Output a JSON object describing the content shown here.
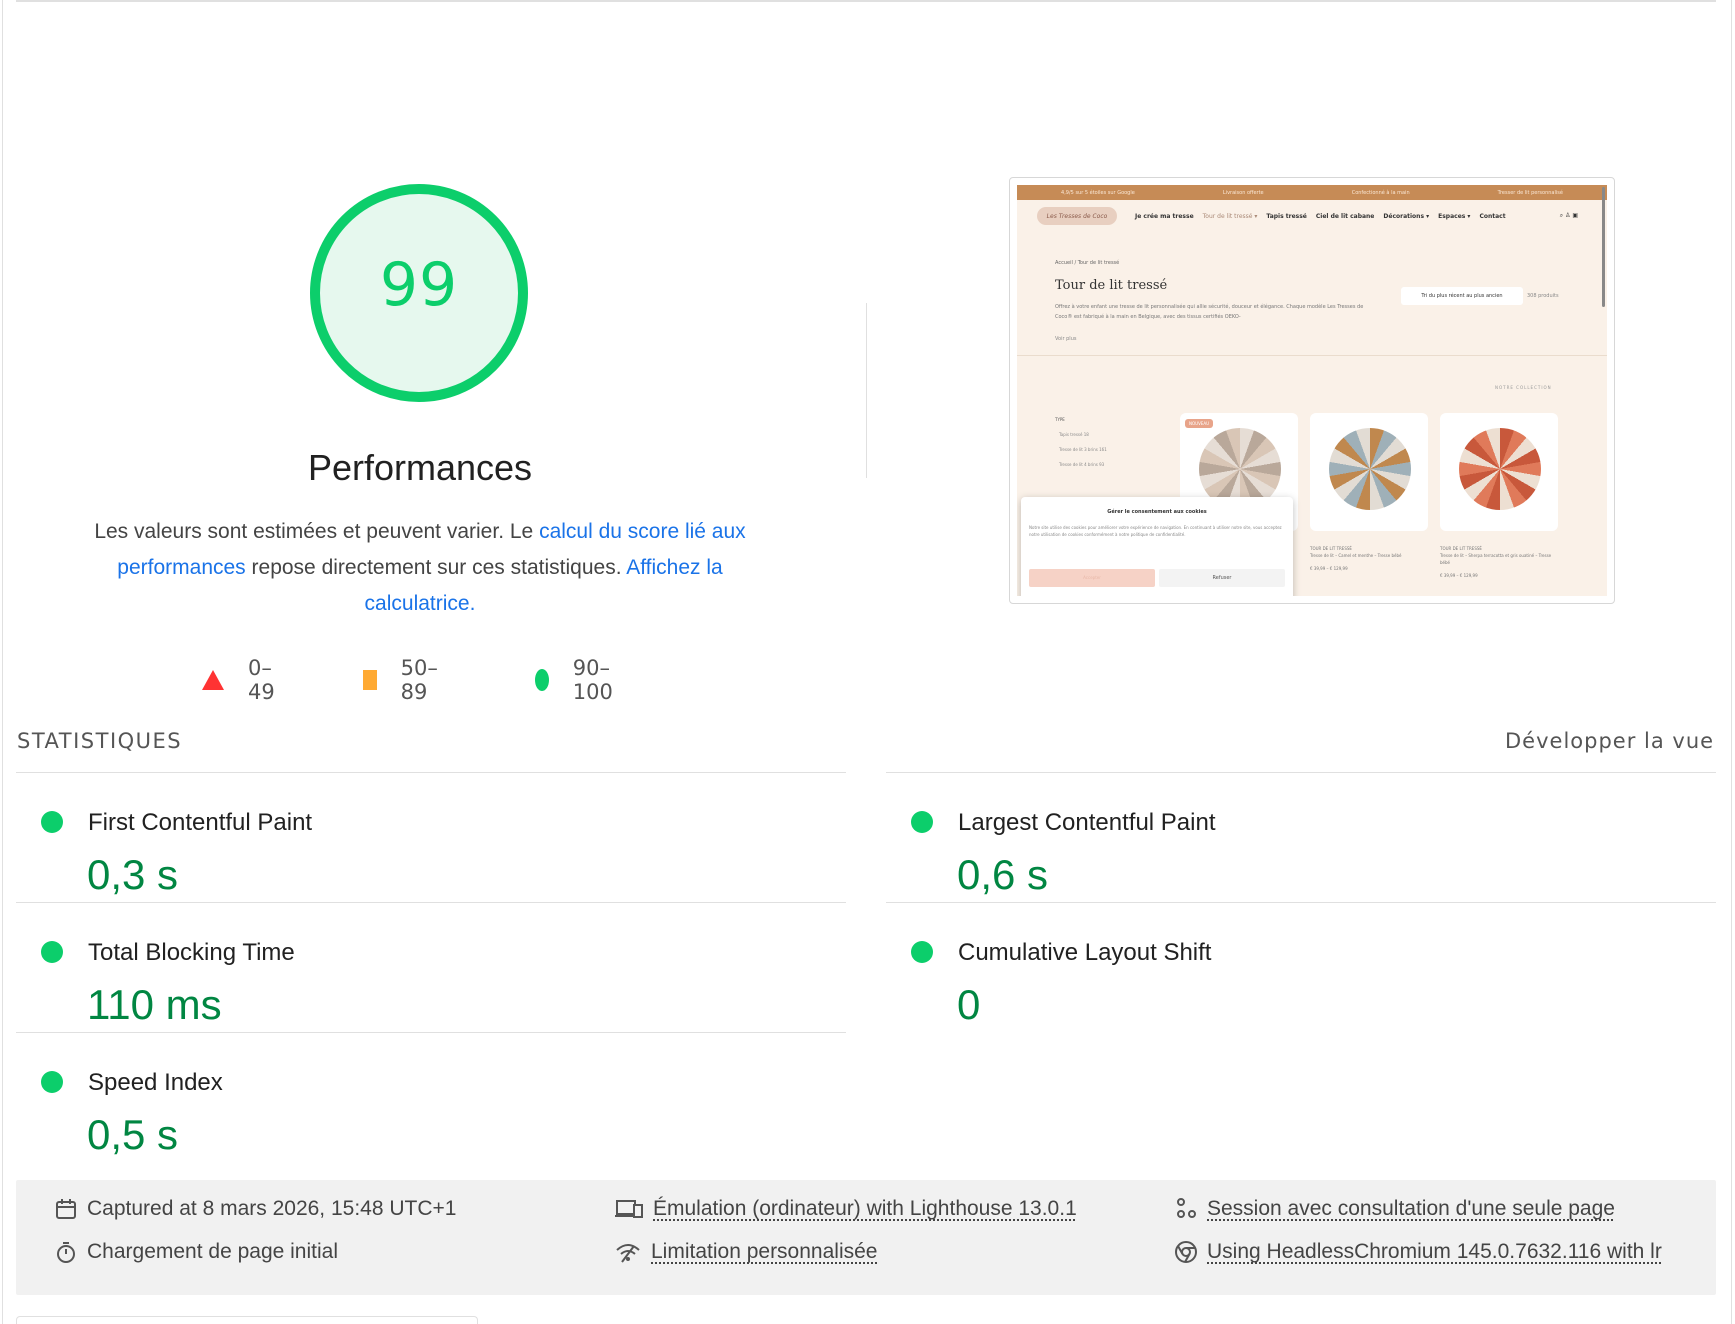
{
  "score": {
    "value": "99",
    "title": "Performances"
  },
  "description": {
    "text_1": "Les valeurs sont estimées et peuvent varier. Le ",
    "link_1": "calcul du score lié aux performances",
    "text_2": " repose directement sur ces statistiques. ",
    "link_2": "Affichez la calculatrice."
  },
  "legend": [
    {
      "icon": "red-triangle-icon",
      "label": "0–49"
    },
    {
      "icon": "orange-square-icon",
      "label": "50–89"
    },
    {
      "icon": "green-circle-icon",
      "label": "90–100"
    }
  ],
  "colors": {
    "pass": "#0cce6b",
    "pass_text": "#018642",
    "average": "#ffaa33",
    "fail": "#ff3333",
    "link": "#1a73e8"
  },
  "metrics_header": {
    "title": "STATISTIQUES",
    "expand_label": "Développer la vue"
  },
  "metrics": [
    {
      "label": "First Contentful Paint",
      "value": "0,3 s",
      "status": "pass"
    },
    {
      "label": "Largest Contentful Paint",
      "value": "0,6 s",
      "status": "pass"
    },
    {
      "label": "Total Blocking Time",
      "value": "110 ms",
      "status": "pass"
    },
    {
      "label": "Cumulative Layout Shift",
      "value": "0",
      "status": "pass"
    },
    {
      "label": "Speed Index",
      "value": "0,5 s",
      "status": "pass"
    }
  ],
  "runtime": {
    "captured": "Captured at 8 mars 2026, 15:48 UTC+1",
    "load_type": "Chargement de page initial",
    "emulation": "Émulation (ordinateur) with Lighthouse 13.0.1",
    "throttling": "Limitation personnalisée",
    "session": "Session avec consultation d'une seule page",
    "browser": "Using HeadlessChromium 145.0.7632.116 with lr"
  },
  "thumbnail": {
    "topbar": [
      "4,9/5 sur 5 étoiles sur Google",
      "Livraison offerte",
      "Confectionné à la main",
      "Tresser de lit personnalisé"
    ],
    "logo": "Les Tresses de Coco",
    "nav": [
      "Je crée ma tresse",
      "Tour de lit tressé ▾",
      "Tapis tressé",
      "Ciel de lit cabane",
      "Décorations ▾",
      "Espaces ▾",
      "Contact"
    ],
    "breadcrumb": "Accueil  /  Tour de lit tressé",
    "heading": "Tour de lit tressé",
    "intro": "Offrez à votre enfant une tresse de lit personnalisée qui allie sécurité, douceur et élégance. Chaque modèle Les Tresses de Coco® est fabriqué à la main en Belgique, avec des tissus certifiés OEKO-",
    "more": "Voir plus",
    "sort": "Tri du plus récent au plus ancien",
    "count": "308 produits",
    "collection": "NOTRE COLLECTION",
    "filter_title": "TYPE",
    "filters": [
      "Tapis tressé 18",
      "Tresse de lit 3 brins 161",
      "Tresse de lit 4 brins 93"
    ],
    "badge": "NOUVEAU",
    "cards": [
      {
        "category": "TOUR DE LIT TRESSÉ",
        "name": "Tresse de lit – Camel et menthe – Tresse bébé",
        "price": "€ 39,99 – € 129,99"
      },
      {
        "category": "TOUR DE LIT TRESSÉ",
        "name": "Tresse de lit – Sherpa terracotta et gris ouatiné – Tresse bébé",
        "price": "€ 39,99 – € 129,99"
      }
    ],
    "cookie_title": "Gérer le consentement aux cookies",
    "cookie_text": "Notre site utilise des cookies pour améliorer votre expérience de navigation. En continuant à utiliser notre site, vous acceptez notre utilisation de cookies conformément à notre politique de confidentialité.",
    "cookie_accept": "Accepter",
    "cookie_refuse": "Refuser"
  }
}
